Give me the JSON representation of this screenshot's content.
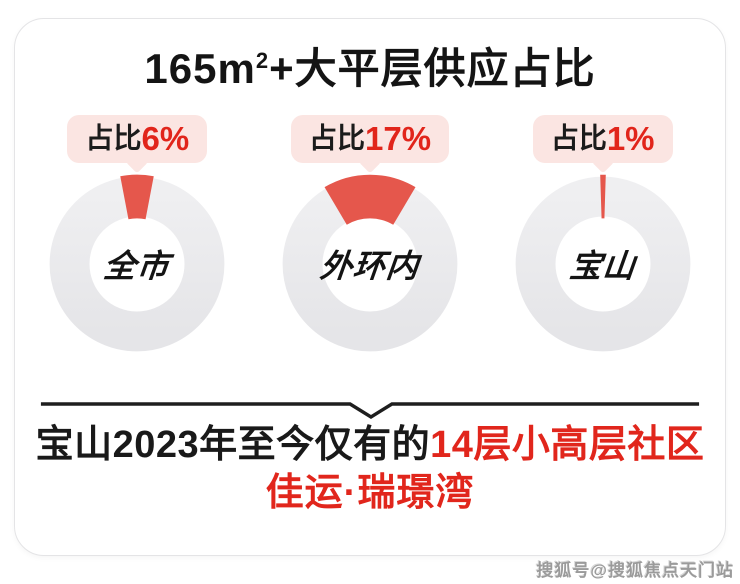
{
  "header": {
    "title_prefix": "165m",
    "title_sup": "2",
    "title_suffix": "+大平层供应占比"
  },
  "chart_data": {
    "type": "pie",
    "subtype": "donut-trio",
    "title": "165m²+大平层供应占比",
    "legend_position": "none",
    "donuts": [
      {
        "label": "全市",
        "value_pct": 6,
        "callout_prefix": "占比",
        "callout_value": "6%"
      },
      {
        "label": "外环内",
        "value_pct": 17,
        "callout_prefix": "占比",
        "callout_value": "17%"
      },
      {
        "label": "宝山",
        "value_pct": 1,
        "callout_prefix": "占比",
        "callout_value": "1%"
      }
    ],
    "colors": {
      "segment_red": "#e5574c",
      "ring_gray": "#eaeaec",
      "callout_bg": "#fbe5e2",
      "accent_red_text": "#e1251b",
      "black_text": "#141414"
    }
  },
  "caption": {
    "line1_black": "宝山2023年至今仅有的",
    "line1_red": "14层小高层社区",
    "line2_red": "佳运·瑞璟湾"
  },
  "watermark": {
    "text": "搜狐号@搜狐焦点天门站"
  }
}
